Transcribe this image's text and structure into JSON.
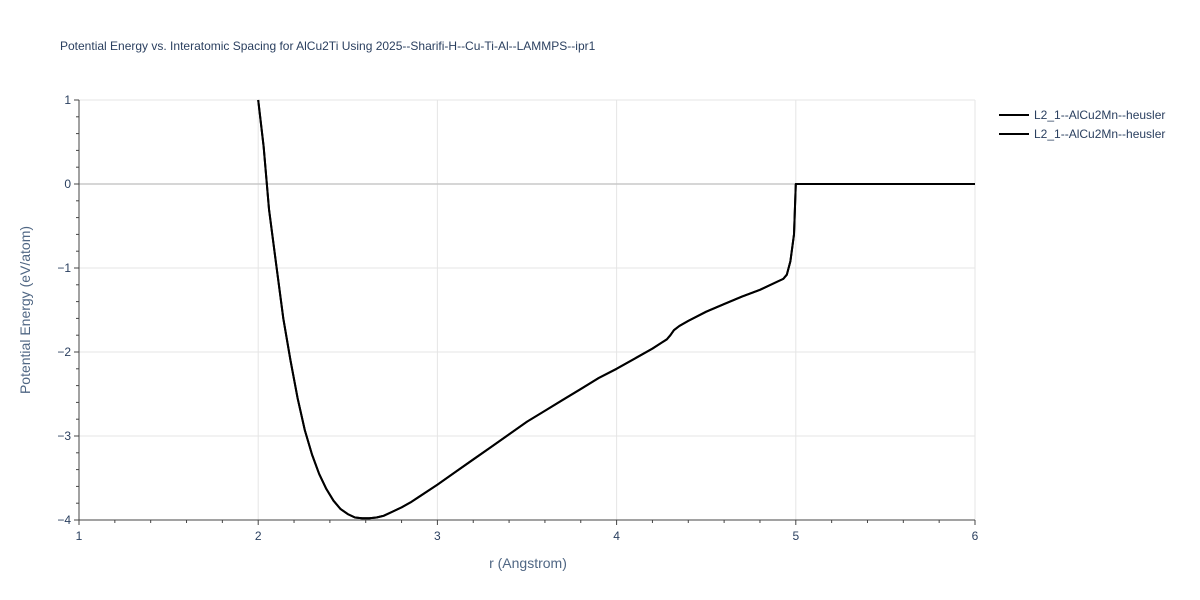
{
  "chart_data": {
    "type": "line",
    "title": "Potential Energy vs. Interatomic Spacing for AlCu2Ti Using 2025--Sharifi-H--Cu-Ti-Al--LAMMPS--ipr1",
    "xlabel": "r (Angstrom)",
    "ylabel": "Potential Energy (eV/atom)",
    "xlim": [
      1,
      6
    ],
    "ylim": [
      -4,
      1
    ],
    "x_ticks": [
      1,
      2,
      3,
      4,
      5,
      6
    ],
    "x_tick_labels": [
      "1",
      "2",
      "3",
      "4",
      "5",
      "6"
    ],
    "y_ticks": [
      1,
      0,
      -1,
      -2,
      -3,
      -4
    ],
    "y_tick_labels": [
      "1",
      "0",
      "−1",
      "−2",
      "−3",
      "−4"
    ],
    "grid": true,
    "legend_position": "top-right",
    "series": [
      {
        "name": "L2_1--AlCu2Mn--heusler",
        "color": "#000000",
        "x": [
          2.0,
          2.03,
          2.06,
          2.1,
          2.14,
          2.18,
          2.22,
          2.26,
          2.3,
          2.34,
          2.38,
          2.42,
          2.46,
          2.5,
          2.54,
          2.58,
          2.62,
          2.66,
          2.7,
          2.75,
          2.8,
          2.85,
          2.9,
          3.0,
          3.1,
          3.2,
          3.3,
          3.4,
          3.5,
          3.6,
          3.7,
          3.8,
          3.9,
          4.0,
          4.1,
          4.2,
          4.25,
          4.28,
          4.3,
          4.32,
          4.35,
          4.4,
          4.5,
          4.6,
          4.7,
          4.8,
          4.9,
          4.93,
          4.95,
          4.97,
          4.99,
          5.0,
          5.1,
          5.5,
          6.0
        ],
        "y": [
          1.0,
          0.45,
          -0.3,
          -0.95,
          -1.6,
          -2.1,
          -2.55,
          -2.93,
          -3.22,
          -3.45,
          -3.63,
          -3.77,
          -3.87,
          -3.93,
          -3.97,
          -3.98,
          -3.98,
          -3.97,
          -3.95,
          -3.9,
          -3.85,
          -3.79,
          -3.72,
          -3.58,
          -3.43,
          -3.28,
          -3.13,
          -2.98,
          -2.83,
          -2.7,
          -2.57,
          -2.44,
          -2.31,
          -2.2,
          -2.08,
          -1.96,
          -1.89,
          -1.85,
          -1.8,
          -1.74,
          -1.69,
          -1.63,
          -1.52,
          -1.43,
          -1.34,
          -1.26,
          -1.16,
          -1.13,
          -1.08,
          -0.92,
          -0.6,
          0.0,
          0.0,
          0.0,
          0.0
        ]
      },
      {
        "name": "L2_1--AlCu2Mn--heusler",
        "color": "#000000",
        "x": [
          2.0,
          2.03,
          2.06,
          2.1,
          2.14,
          2.18,
          2.22,
          2.26,
          2.3,
          2.34,
          2.38,
          2.42,
          2.46,
          2.5,
          2.54,
          2.58,
          2.62,
          2.66,
          2.7,
          2.75,
          2.8,
          2.85,
          2.9,
          3.0,
          3.1,
          3.2,
          3.3,
          3.4,
          3.5,
          3.6,
          3.7,
          3.8,
          3.9,
          4.0,
          4.1,
          4.2,
          4.25,
          4.28,
          4.3,
          4.32,
          4.35,
          4.4,
          4.5,
          4.6,
          4.7,
          4.8,
          4.9,
          4.93,
          4.95,
          4.97,
          4.99,
          5.0,
          5.1,
          5.5,
          6.0
        ],
        "y": [
          1.0,
          0.45,
          -0.3,
          -0.95,
          -1.6,
          -2.1,
          -2.55,
          -2.93,
          -3.22,
          -3.45,
          -3.63,
          -3.77,
          -3.87,
          -3.93,
          -3.97,
          -3.98,
          -3.98,
          -3.97,
          -3.95,
          -3.9,
          -3.85,
          -3.79,
          -3.72,
          -3.58,
          -3.43,
          -3.28,
          -3.13,
          -2.98,
          -2.83,
          -2.7,
          -2.57,
          -2.44,
          -2.31,
          -2.2,
          -2.08,
          -1.96,
          -1.89,
          -1.85,
          -1.8,
          -1.74,
          -1.69,
          -1.63,
          -1.52,
          -1.43,
          -1.34,
          -1.26,
          -1.16,
          -1.13,
          -1.08,
          -0.92,
          -0.6,
          0.0,
          0.0,
          0.0,
          0.0
        ]
      }
    ]
  }
}
